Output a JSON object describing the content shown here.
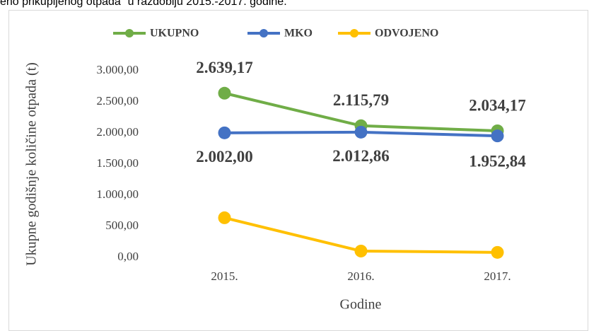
{
  "caption": "eno prikupljenog otpada“ u razdoblju 2015.-2017. godine.",
  "chart_data": {
    "type": "line",
    "y_label": "Ukupne godišnje količine otpada (t)",
    "x_label": "Godine",
    "categories": [
      "2015.",
      "2016.",
      "2017."
    ],
    "series": [
      {
        "name": "UKUPNO",
        "color": "#70ad47",
        "values": [
          2639.17,
          2115.79,
          2034.17
        ],
        "value_labels": [
          "2.639,17",
          "2.115,79",
          "2.034,17"
        ]
      },
      {
        "name": "MKO",
        "color": "#4472c4",
        "values": [
          2002.0,
          2012.86,
          1952.84
        ],
        "value_labels": [
          "2.002,00",
          "2.012,86",
          "1.952,84"
        ]
      },
      {
        "name": "ODVOJENO",
        "color": "#ffc000",
        "values": [
          637.17,
          102.93,
          81.33
        ]
      }
    ],
    "ylim": [
      0,
      3000
    ],
    "yticks": [
      {
        "value": 0,
        "label": "0,00"
      },
      {
        "value": 500,
        "label": "500,00"
      },
      {
        "value": 1000,
        "label": "1.000,00"
      },
      {
        "value": 1500,
        "label": "1.500,00"
      },
      {
        "value": 2000,
        "label": "2.000,00"
      },
      {
        "value": 2500,
        "label": "2.500,00"
      },
      {
        "value": 3000,
        "label": "3.000,00"
      }
    ],
    "grid": false,
    "legend": "top"
  }
}
